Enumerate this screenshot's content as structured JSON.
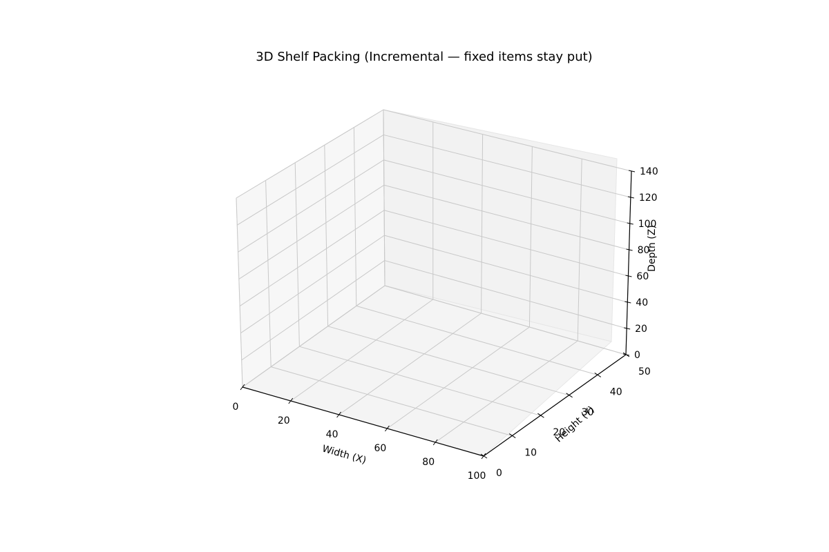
{
  "chart_data": {
    "type": "3d-empty",
    "title": "3D Shelf Packing (Incremental — fixed items stay put)",
    "xlabel": "Width (X)",
    "ylabel": "Height (Y)",
    "zlabel": "Depth (Z)",
    "xlim": [
      0,
      100
    ],
    "ylim": [
      0,
      50
    ],
    "zlim": [
      0,
      140
    ],
    "xticks": [
      0,
      20,
      40,
      60,
      80,
      100
    ],
    "yticks": [
      0,
      10,
      20,
      30,
      40,
      50
    ],
    "zticks": [
      0,
      20,
      40,
      60,
      80,
      100,
      120,
      140
    ],
    "grid": true,
    "series": []
  }
}
